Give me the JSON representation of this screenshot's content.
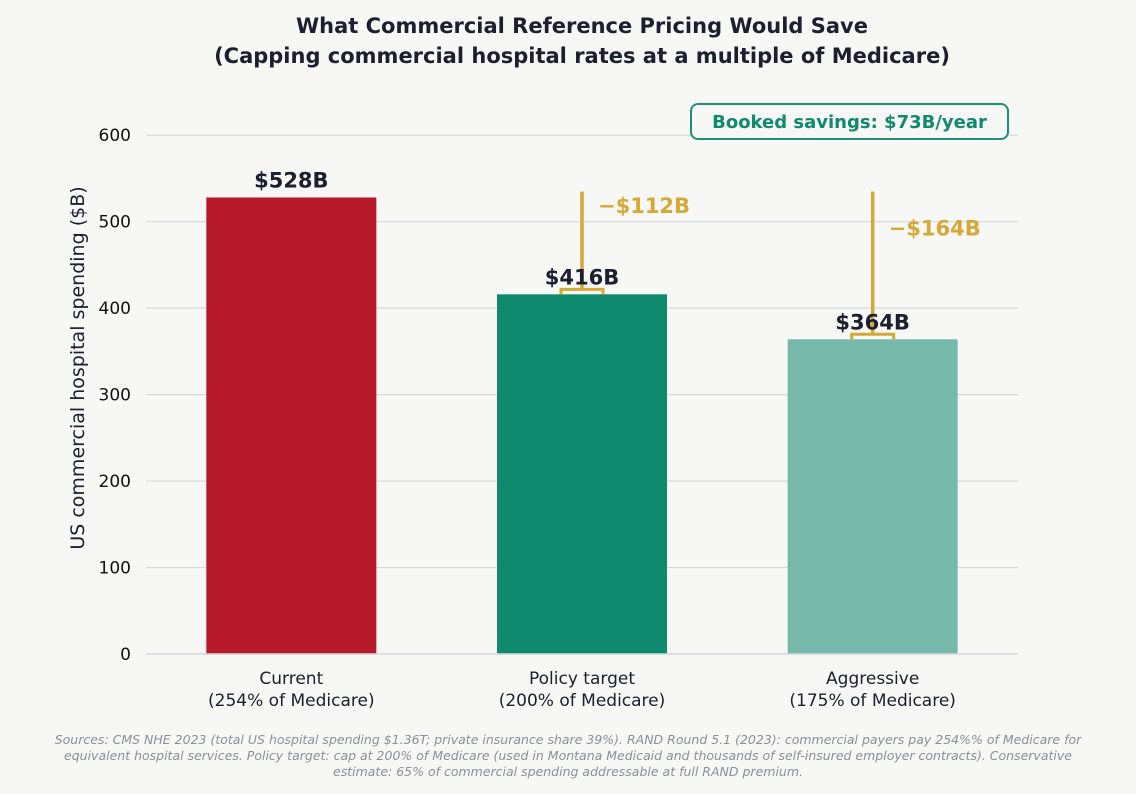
{
  "colors": {
    "background": "#f7f7f5",
    "current": "#b5192a",
    "policy": "#0f8a6e",
    "aggressive": "#76b8a9",
    "delta": "#d4a937",
    "text": "#1b1f2e",
    "grid": "#d5d8de",
    "source_text": "#8b8f99"
  },
  "chart_data": {
    "type": "bar",
    "title_lines": [
      "What Commercial Reference Pricing Would Save",
      "(Capping commercial hospital rates at a multiple of Medicare)"
    ],
    "xlabel": "",
    "ylabel": "US commercial hospital spending ($B)",
    "ylim": [
      0,
      650
    ],
    "yticks": [
      0,
      100,
      200,
      300,
      400,
      500,
      600
    ],
    "grid": true,
    "categories": [
      {
        "line1": "Current",
        "line2": "(254% of Medicare)"
      },
      {
        "line1": "Policy target",
        "line2": "(200% of Medicare)"
      },
      {
        "line1": "Aggressive",
        "line2": "(175% of Medicare)"
      }
    ],
    "values": [
      528,
      416,
      364
    ],
    "value_labels": [
      "$528B",
      "$416B",
      "$364B"
    ],
    "bar_colors": [
      "#b5192a",
      "#0f8a6e",
      "#76b8a9"
    ],
    "reductions": [
      {
        "bar_index": 1,
        "from": 528,
        "to": 416,
        "label": "−$112B"
      },
      {
        "bar_index": 2,
        "from": 528,
        "to": 364,
        "label": "−$164B"
      }
    ],
    "annotation": "Booked savings: $73B/year"
  },
  "sources": [
    "Sources: CMS NHE 2023 (total US hospital spending $1.36T; private insurance share 39%). RAND Round 5.1 (2023): commercial payers pay 254%% of Medicare for",
    "equivalent hospital services. Policy target: cap at 200% of Medicare (used in Montana Medicaid and thousands of self-insured employer contracts). Conservative",
    "estimate: 65% of commercial spending addressable at full RAND premium."
  ]
}
